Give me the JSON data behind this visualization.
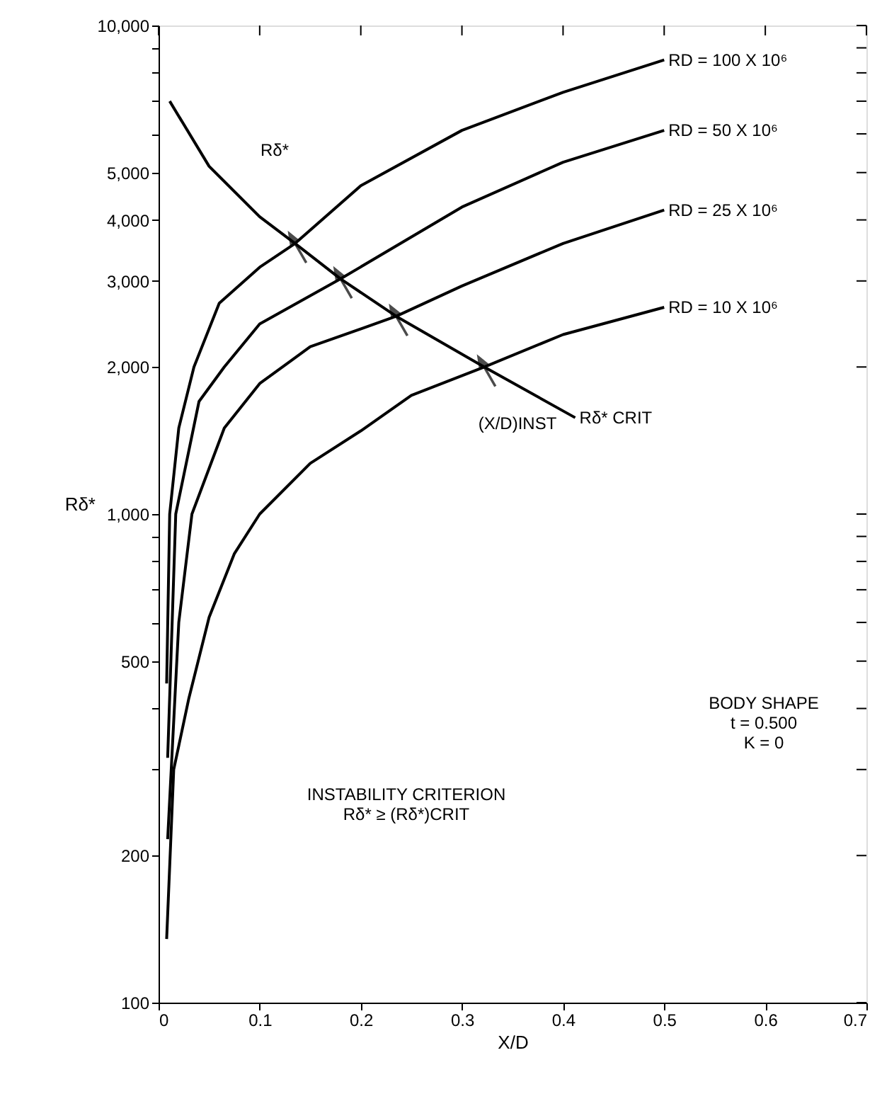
{
  "chart_data": {
    "type": "line",
    "xlabel": "X/D",
    "ylabel": "Rδ*",
    "log": "y",
    "grid": false,
    "legend": "top right",
    "marker": "none",
    "line_style": "solid",
    "xlim": [
      0,
      0.7
    ],
    "xticks": [
      0,
      0.1,
      0.2,
      0.3,
      0.4,
      0.5,
      0.6,
      0.7
    ],
    "ylim": [
      100,
      10000
    ],
    "yticks": [
      100,
      200,
      {
        "value": 300,
        "label": null
      },
      {
        "value": 400,
        "label": null
      },
      500,
      {
        "value": 600,
        "label": null
      },
      {
        "value": 700,
        "label": null
      },
      {
        "value": 800,
        "label": null
      },
      {
        "value": 900,
        "label": null
      },
      {
        "value": 1000,
        "label": "1,000"
      },
      {
        "value": 2000,
        "label": "2,000"
      },
      {
        "value": 3000,
        "label": "3,000"
      },
      {
        "value": 4000,
        "label": "4,000"
      },
      {
        "value": 5000,
        "label": "5,000"
      },
      {
        "value": 6000,
        "label": null
      },
      {
        "value": 7000,
        "label": null
      },
      {
        "value": 8000,
        "label": null
      },
      {
        "value": 9000,
        "label": null
      },
      {
        "value": 10000,
        "label": "10,000"
      }
    ],
    "series": [
      {
        "name": "RD = 100 X 10⁶",
        "color": "#000000",
        "x": [
          0.008,
          0.011,
          0.02,
          0.035,
          0.06,
          0.1,
          0.135,
          0.2,
          0.3,
          0.4,
          0.5
        ],
        "values": [
          450,
          1000,
          1500,
          2000,
          2700,
          3200,
          3580,
          4700,
          6100,
          7300,
          8500
        ]
      },
      {
        "name": "RD = 50 X 10⁶",
        "color": "#000000",
        "x": [
          0.009,
          0.017,
          0.04,
          0.065,
          0.1,
          0.18,
          0.3,
          0.4,
          0.5
        ],
        "values": [
          317,
          1000,
          1700,
          2000,
          2450,
          3030,
          4250,
          5250,
          6100
        ]
      },
      {
        "name": "RD = 25 X 10⁶",
        "color": "#000000",
        "x": [
          0.009,
          0.02,
          0.033,
          0.065,
          0.1,
          0.15,
          0.235,
          0.3,
          0.4,
          0.5
        ],
        "values": [
          216,
          600,
          1000,
          1500,
          1850,
          2200,
          2540,
          2930,
          3580,
          4190
        ]
      },
      {
        "name": "RD = 10 X 10⁶",
        "color": "#000000",
        "x": [
          0.008,
          0.015,
          0.03,
          0.05,
          0.075,
          0.1,
          0.15,
          0.2,
          0.25,
          0.322,
          0.4,
          0.5
        ],
        "values": [
          135,
          300,
          420,
          615,
          830,
          1000,
          1270,
          1480,
          1750,
          2000,
          2330,
          2650
        ]
      },
      {
        "name": "Rδ* CRIT",
        "color": "#000000",
        "x": [
          0.011,
          0.05,
          0.1,
          0.135,
          0.18,
          0.235,
          0.322,
          0.412
        ],
        "values": [
          7000,
          5150,
          4060,
          3580,
          3030,
          2540,
          2000,
          1575
        ]
      }
    ],
    "annotations": [
      "Rδ*",
      "(X/D)INST",
      "BODY SHAPE\nt = 0.500\nK = 0",
      "INSTABILITY CRITERION\nRδ* ≥ (Rδ*)CRIT"
    ]
  }
}
